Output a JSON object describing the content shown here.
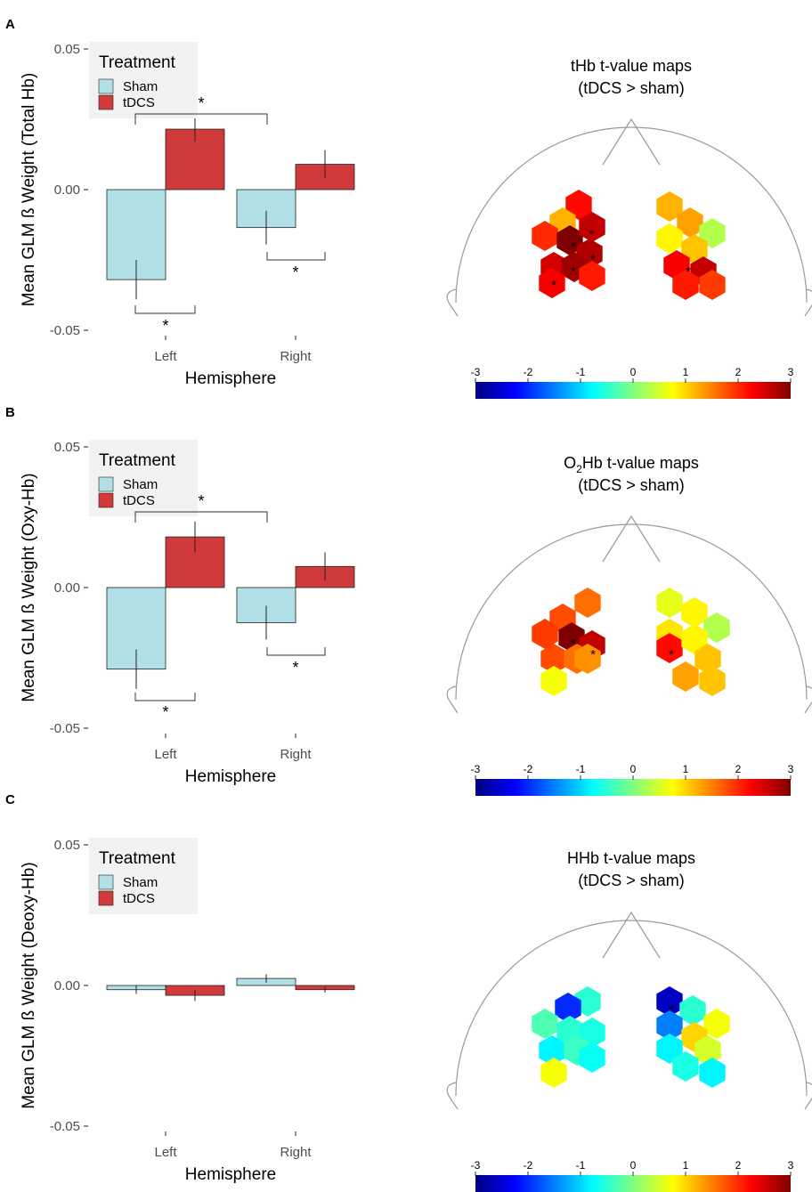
{
  "chart_data": [
    {
      "panel": "A",
      "type": "bar",
      "ylabel": "Mean GLM ß Weight (Total Hb)",
      "xlabel": "Hemisphere",
      "categories": [
        "Left",
        "Right"
      ],
      "ylim": [
        -0.05,
        0.05
      ],
      "yticks": [
        "-0.05",
        "0.00",
        "0.05"
      ],
      "legend_title": "Treatment",
      "series": [
        {
          "name": "Sham",
          "values": [
            -0.032,
            -0.0135
          ],
          "errors": [
            0.007,
            0.006
          ]
        },
        {
          "name": "tDCS",
          "values": [
            0.0215,
            0.009
          ],
          "errors": [
            0.0045,
            0.005
          ]
        }
      ],
      "significance": [
        "*",
        "*",
        "*"
      ],
      "map": {
        "title_line1": "tHb t-value maps",
        "title_line2": "(tDCS > sham)",
        "stars": [
          "*",
          "*",
          "*",
          "*",
          "*",
          "*"
        ]
      }
    },
    {
      "panel": "B",
      "type": "bar",
      "ylabel": "Mean GLM ß Weight (Oxy-Hb)",
      "xlabel": "Hemisphere",
      "categories": [
        "Left",
        "Right"
      ],
      "ylim": [
        -0.05,
        0.05
      ],
      "yticks": [
        "-0.05",
        "0.00",
        "0.05"
      ],
      "legend_title": "Treatment",
      "series": [
        {
          "name": "Sham",
          "values": [
            -0.029,
            -0.0125
          ],
          "errors": [
            0.007,
            0.006
          ]
        },
        {
          "name": "tDCS",
          "values": [
            0.018,
            0.0075
          ],
          "errors": [
            0.0055,
            0.005
          ]
        }
      ],
      "significance": [
        "*",
        "*",
        "*"
      ],
      "map": {
        "title_pre": "O",
        "title_sub": "2",
        "title_post": "Hb t-value maps",
        "title_line2": "(tDCS > sham)",
        "stars": [
          "*",
          "*",
          "*"
        ]
      }
    },
    {
      "panel": "C",
      "type": "bar",
      "ylabel": "Mean GLM ß Weight (Deoxy-Hb)",
      "xlabel": "Hemisphere",
      "categories": [
        "Left",
        "Right"
      ],
      "ylim": [
        -0.05,
        0.05
      ],
      "yticks": [
        "-0.05",
        "0.00",
        "0.05"
      ],
      "legend_title": "Treatment",
      "series": [
        {
          "name": "Sham",
          "values": [
            -0.0015,
            0.0025
          ],
          "errors": [
            0.0015,
            0.0015
          ]
        },
        {
          "name": "tDCS",
          "values": [
            -0.0035,
            -0.0015
          ],
          "errors": [
            0.002,
            0.001
          ]
        }
      ],
      "significance": [],
      "map": {
        "title_line1": "HHb t-value maps",
        "title_line2": "(tDCS > sham)",
        "stars": [
          "*"
        ]
      }
    }
  ],
  "colorbar": {
    "ticks": [
      "-3",
      "-2",
      "-1",
      "0",
      "1",
      "2",
      "3"
    ],
    "range": [
      -3,
      3
    ],
    "stops": [
      "#00007f",
      "#0000ff",
      "#007fff",
      "#00ffff",
      "#7fff7f",
      "#ffff00",
      "#ff7f00",
      "#ff0000",
      "#7f0000"
    ]
  },
  "colors": {
    "sham": "#b0dfe5",
    "tdcs": "#d13a3a",
    "legend_bg": "#f2f2f2",
    "outline": "#9a9a9a"
  }
}
